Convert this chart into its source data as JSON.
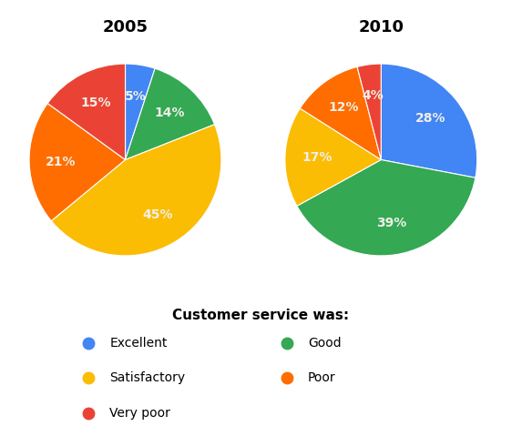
{
  "title_2005": "2005",
  "title_2010": "2010",
  "categories": [
    "Excellent",
    "Good",
    "Satisfactory",
    "Poor",
    "Very poor"
  ],
  "colors": {
    "Excellent": "#4285F4",
    "Good": "#34A853",
    "Satisfactory": "#FBBC04",
    "Poor": "#FF6D00",
    "Very poor": "#EA4335"
  },
  "data_2005": {
    "Excellent": 5,
    "Good": 14,
    "Satisfactory": 45,
    "Poor": 21,
    "Very poor": 15
  },
  "data_2010": {
    "Excellent": 28,
    "Good": 39,
    "Satisfactory": 17,
    "Poor": 12,
    "Very poor": 4
  },
  "legend_title": "Customer service was:",
  "legend_title_fontsize": 11,
  "legend_fontsize": 10,
  "title_fontsize": 13,
  "label_fontsize": 10,
  "background_color": "#ffffff"
}
